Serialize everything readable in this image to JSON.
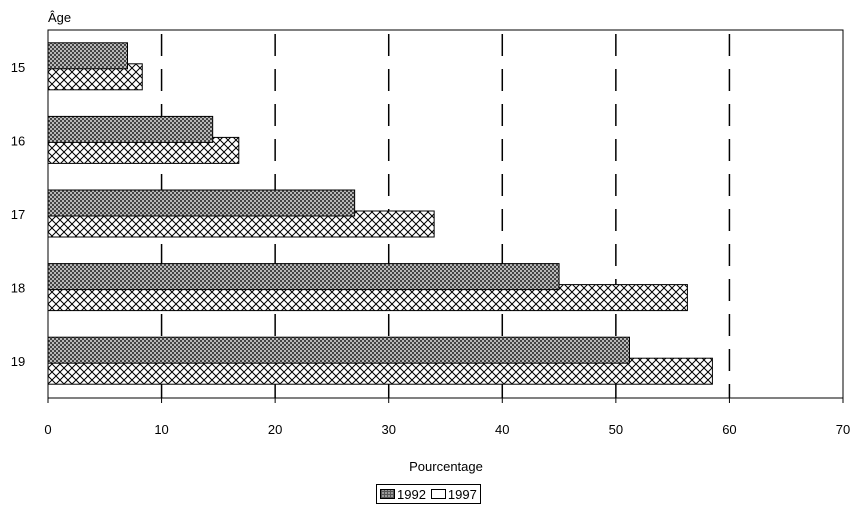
{
  "chart_data": {
    "type": "bar",
    "orientation": "horizontal",
    "title": "",
    "ylabel": "Âge",
    "xlabel": "Pourcentage",
    "categories": [
      "15",
      "16",
      "17",
      "18",
      "19"
    ],
    "series": [
      {
        "name": "1992",
        "values": [
          7,
          14.5,
          27,
          45,
          51.2
        ],
        "pattern": "dense-checker"
      },
      {
        "name": "1997",
        "values": [
          8.3,
          16.8,
          34,
          56.3,
          58.5
        ],
        "pattern": "diagonal-crosshatch"
      }
    ],
    "xlim": [
      0,
      70
    ],
    "xticks": [
      "0",
      "10",
      "20",
      "30",
      "40",
      "50",
      "60",
      "70"
    ],
    "grid": "vertical-dashed",
    "legend_position": "bottom-center"
  }
}
